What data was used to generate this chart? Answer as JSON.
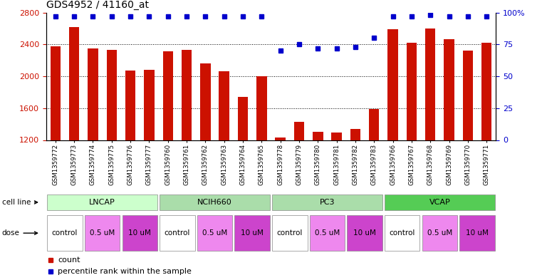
{
  "title": "GDS4952 / 41160_at",
  "samples": [
    "GSM1359772",
    "GSM1359773",
    "GSM1359774",
    "GSM1359775",
    "GSM1359776",
    "GSM1359777",
    "GSM1359760",
    "GSM1359761",
    "GSM1359762",
    "GSM1359763",
    "GSM1359764",
    "GSM1359765",
    "GSM1359778",
    "GSM1359779",
    "GSM1359780",
    "GSM1359781",
    "GSM1359782",
    "GSM1359783",
    "GSM1359766",
    "GSM1359767",
    "GSM1359768",
    "GSM1359769",
    "GSM1359770",
    "GSM1359771"
  ],
  "bar_values": [
    2380,
    2620,
    2350,
    2330,
    2070,
    2080,
    2310,
    2330,
    2160,
    2060,
    1740,
    2000,
    1230,
    1430,
    1300,
    1290,
    1340,
    1590,
    2590,
    2420,
    2600,
    2470,
    2320,
    2420
  ],
  "percentile_values": [
    97,
    97,
    97,
    97,
    97,
    97,
    97,
    97,
    97,
    97,
    97,
    97,
    70,
    75,
    72,
    72,
    73,
    80,
    97,
    97,
    98,
    97,
    97,
    97
  ],
  "cell_line_names": [
    "LNCAP",
    "NCIH660",
    "PC3",
    "VCAP"
  ],
  "cell_line_ranges": [
    [
      0,
      6
    ],
    [
      6,
      12
    ],
    [
      12,
      18
    ],
    [
      18,
      24
    ]
  ],
  "cell_line_colors": [
    "#ccffcc",
    "#aaddaa",
    "#aaddaa",
    "#55cc55"
  ],
  "dose_label_seq": [
    "control",
    "0.5 uM",
    "10 uM",
    "control",
    "0.5 uM",
    "10 uM",
    "control",
    "0.5 uM",
    "10 uM",
    "control",
    "0.5 uM",
    "10 uM"
  ],
  "dose_ranges": [
    [
      0,
      2
    ],
    [
      2,
      4
    ],
    [
      4,
      6
    ],
    [
      6,
      8
    ],
    [
      8,
      10
    ],
    [
      10,
      12
    ],
    [
      12,
      14
    ],
    [
      14,
      16
    ],
    [
      16,
      18
    ],
    [
      18,
      20
    ],
    [
      20,
      22
    ],
    [
      22,
      24
    ]
  ],
  "dose_colors": {
    "control": "#ffffff",
    "0.5 uM": "#ee88ee",
    "10 uM": "#cc44cc"
  },
  "ylim_left": [
    1200,
    2800
  ],
  "ylim_right": [
    0,
    100
  ],
  "yticks_left": [
    1200,
    1600,
    2000,
    2400,
    2800
  ],
  "yticks_right": [
    0,
    25,
    50,
    75,
    100
  ],
  "bar_color": "#cc1100",
  "dot_color": "#0000cc",
  "title_fontsize": 10,
  "left_tick_color": "#cc1100",
  "right_tick_color": "#0000cc"
}
